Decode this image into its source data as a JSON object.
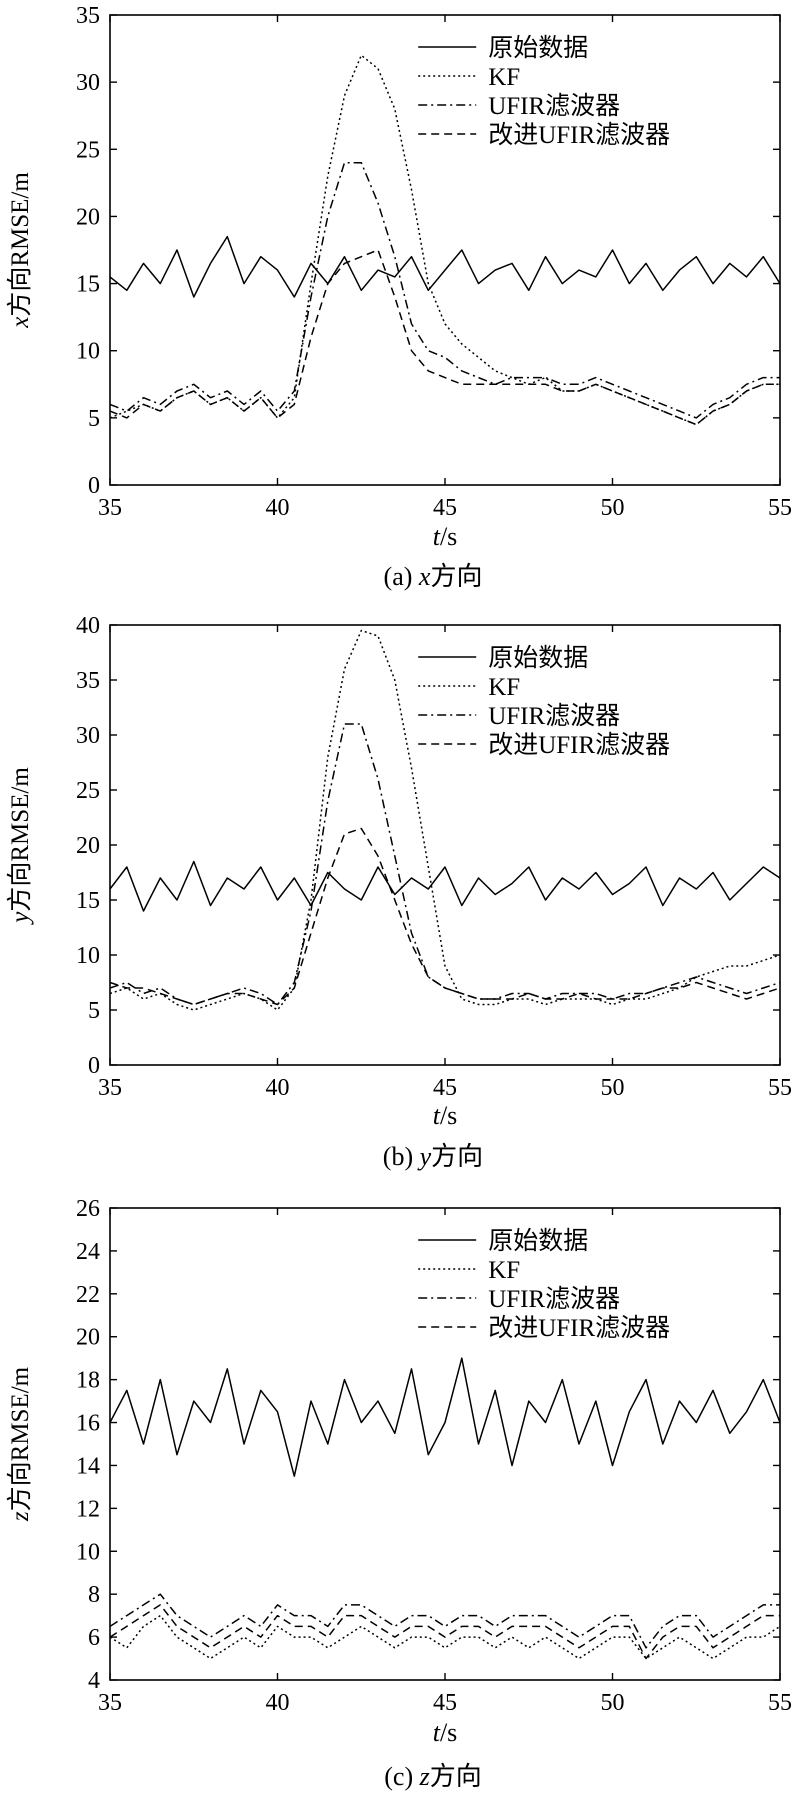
{
  "legend": {
    "raw": "原始数据",
    "kf": "KF",
    "ufir": "UFIR滤波器",
    "improved": "改进UFIR滤波器"
  },
  "colors": {
    "line": "#000000",
    "background": "#ffffff"
  },
  "chart_data": [
    {
      "type": "line",
      "xlabel_prefix": "t",
      "xlabel_suffix": "/s",
      "ylabel_prefix": "x",
      "ylabel_suffix": "方向RMSE/m",
      "caption_prefix": "(a) ",
      "caption_axis": "x",
      "caption_suffix": "方向",
      "xlim": [
        35,
        55
      ],
      "ylim": [
        0,
        35
      ],
      "xticks": [
        35,
        40,
        45,
        50,
        55
      ],
      "yticks": [
        0,
        5,
        10,
        15,
        20,
        25,
        30,
        35
      ],
      "legend_position": "top-right",
      "grid": false,
      "x": [
        35,
        35.5,
        36,
        36.5,
        37,
        37.5,
        38,
        38.5,
        39,
        39.5,
        40,
        40.5,
        41,
        41.5,
        42,
        42.5,
        43,
        43.5,
        44,
        44.5,
        45,
        45.5,
        46,
        46.5,
        47,
        47.5,
        48,
        48.5,
        49,
        49.5,
        50,
        50.5,
        51,
        51.5,
        52,
        52.5,
        53,
        53.5,
        54,
        54.5,
        55
      ],
      "series": [
        {
          "name": "原始数据",
          "dash": "solid",
          "values": [
            15.5,
            14.5,
            16.5,
            15,
            17.5,
            14,
            16.5,
            18.5,
            15,
            17,
            16,
            14,
            16.5,
            15,
            17,
            14.5,
            16,
            15.5,
            17,
            14.5,
            16,
            17.5,
            15,
            16,
            16.5,
            14.5,
            17,
            15,
            16,
            15.5,
            17.5,
            15,
            16.5,
            14.5,
            16,
            17,
            15,
            16.5,
            15.5,
            17,
            15
          ]
        },
        {
          "name": "KF",
          "dash": "dot",
          "values": [
            5,
            5.5,
            6,
            5.5,
            6.5,
            7,
            6,
            6.5,
            5.5,
            6.5,
            5,
            6.5,
            15,
            23,
            29,
            32,
            31,
            28,
            22,
            15,
            12,
            10.5,
            9.5,
            8.5,
            8,
            7.5,
            8,
            7,
            7,
            7.5,
            7,
            6.5,
            6,
            5.5,
            5,
            4.5,
            5.5,
            6,
            7,
            7.5,
            7.5
          ]
        },
        {
          "name": "UFIR滤波器",
          "dash": "dashdot",
          "values": [
            6,
            5.5,
            6.5,
            6,
            7,
            7.5,
            6.5,
            7,
            6,
            7,
            5.5,
            7,
            14,
            20,
            24,
            24,
            21,
            17,
            12,
            10,
            9.5,
            8.5,
            8,
            7.5,
            8,
            8,
            8,
            7.5,
            7.5,
            8,
            7.5,
            7,
            6.5,
            6,
            5.5,
            5,
            6,
            6.5,
            7.5,
            8,
            8
          ]
        },
        {
          "name": "改进UFIR滤波器",
          "dash": "dash",
          "values": [
            5.5,
            5,
            6,
            5.5,
            6.5,
            7,
            6,
            6.5,
            5.5,
            6.5,
            5,
            6,
            11,
            15,
            16.5,
            17,
            17.5,
            14,
            10,
            8.5,
            8,
            7.5,
            7.5,
            7.5,
            7.5,
            7.5,
            7.5,
            7,
            7,
            7.5,
            7,
            6.5,
            6,
            5.5,
            5,
            4.5,
            5.5,
            6,
            7,
            7.5,
            7.5
          ]
        }
      ]
    },
    {
      "type": "line",
      "xlabel_prefix": "t",
      "xlabel_suffix": "/s",
      "ylabel_prefix": "y",
      "ylabel_suffix": "方向RMSE/m",
      "caption_prefix": "(b) ",
      "caption_axis": "y",
      "caption_suffix": "方向",
      "xlim": [
        35,
        55
      ],
      "ylim": [
        0,
        40
      ],
      "xticks": [
        35,
        40,
        45,
        50,
        55
      ],
      "yticks": [
        0,
        5,
        10,
        15,
        20,
        25,
        30,
        35,
        40
      ],
      "legend_position": "top-right",
      "grid": false,
      "x": [
        35,
        35.5,
        36,
        36.5,
        37,
        37.5,
        38,
        38.5,
        39,
        39.5,
        40,
        40.5,
        41,
        41.5,
        42,
        42.5,
        43,
        43.5,
        44,
        44.5,
        45,
        45.5,
        46,
        46.5,
        47,
        47.5,
        48,
        48.5,
        49,
        49.5,
        50,
        50.5,
        51,
        51.5,
        52,
        52.5,
        53,
        53.5,
        54,
        54.5,
        55
      ],
      "series": [
        {
          "name": "原始数据",
          "dash": "solid",
          "values": [
            16,
            18,
            14,
            17,
            15,
            18.5,
            14.5,
            17,
            16,
            18,
            15,
            17,
            14.5,
            17.5,
            16,
            15,
            18,
            15.5,
            17,
            16,
            18,
            14.5,
            17,
            15.5,
            16.5,
            18,
            15,
            17,
            16,
            17.5,
            15.5,
            16.5,
            18,
            14.5,
            17,
            16,
            17.5,
            15,
            16.5,
            18,
            17
          ]
        },
        {
          "name": "KF",
          "dash": "dot",
          "values": [
            6.5,
            7,
            6,
            6.5,
            5.5,
            5,
            5.5,
            6,
            6.5,
            6,
            5,
            7,
            15,
            28,
            36,
            39.5,
            39,
            35,
            27,
            18,
            9,
            6,
            5.5,
            5.5,
            6,
            6,
            5.5,
            6,
            6,
            6,
            5.5,
            6,
            6,
            6.5,
            7,
            8,
            8.5,
            9,
            9,
            9.5,
            10
          ]
        },
        {
          "name": "UFIR滤波器",
          "dash": "dashdot",
          "values": [
            7,
            7.5,
            6.5,
            7,
            6,
            5.5,
            6,
            6.5,
            7,
            6.5,
            5.5,
            7.5,
            14,
            24,
            31,
            31,
            26,
            19,
            12,
            8,
            7,
            6.5,
            6,
            6,
            6.5,
            6.5,
            6,
            6.5,
            6.5,
            6.5,
            6,
            6.5,
            6.5,
            7,
            7.5,
            8,
            7.5,
            7,
            6.5,
            7,
            7.5
          ]
        },
        {
          "name": "改进UFIR滤波器",
          "dash": "dash",
          "values": [
            7.5,
            7,
            7,
            6.5,
            6,
            5.5,
            6,
            6.5,
            6.5,
            6,
            5.5,
            7,
            12,
            17,
            21,
            21.5,
            19,
            15,
            11,
            8,
            7,
            6.5,
            6,
            6,
            6,
            6.5,
            6,
            6,
            6.5,
            6,
            6,
            6,
            6.5,
            7,
            7,
            7.5,
            7,
            6.5,
            6,
            6.5,
            7
          ]
        }
      ]
    },
    {
      "type": "line",
      "xlabel_prefix": "t",
      "xlabel_suffix": "/s",
      "ylabel_prefix": "z",
      "ylabel_suffix": "方向RMSE/m",
      "caption_prefix": "(c) ",
      "caption_axis": "z",
      "caption_suffix": "方向",
      "xlim": [
        35,
        55
      ],
      "ylim": [
        4,
        26
      ],
      "xticks": [
        35,
        40,
        45,
        50,
        55
      ],
      "yticks": [
        4,
        6,
        8,
        10,
        12,
        14,
        16,
        18,
        20,
        22,
        24,
        26
      ],
      "legend_position": "top-right",
      "grid": false,
      "x": [
        35,
        35.5,
        36,
        36.5,
        37,
        37.5,
        38,
        38.5,
        39,
        39.5,
        40,
        40.5,
        41,
        41.5,
        42,
        42.5,
        43,
        43.5,
        44,
        44.5,
        45,
        45.5,
        46,
        46.5,
        47,
        47.5,
        48,
        48.5,
        49,
        49.5,
        50,
        50.5,
        51,
        51.5,
        52,
        52.5,
        53,
        53.5,
        54,
        54.5,
        55
      ],
      "series": [
        {
          "name": "原始数据",
          "dash": "solid",
          "values": [
            16,
            17.5,
            15,
            18,
            14.5,
            17,
            16,
            18.5,
            15,
            17.5,
            16.5,
            13.5,
            17,
            15,
            18,
            16,
            17,
            15.5,
            18.5,
            14.5,
            16,
            19,
            15,
            17.5,
            14,
            17,
            16,
            18,
            15,
            17,
            14,
            16.5,
            18,
            15,
            17,
            16,
            17.5,
            15.5,
            16.5,
            18,
            16
          ]
        },
        {
          "name": "KF",
          "dash": "dot",
          "values": [
            6,
            5.5,
            6.5,
            7,
            6,
            5.5,
            5,
            5.5,
            6,
            5.5,
            6.5,
            6,
            6,
            5.5,
            6,
            6.5,
            6,
            5.5,
            6,
            6,
            5.5,
            6,
            6,
            5.5,
            6,
            5.5,
            6,
            5.5,
            5,
            5.5,
            6,
            6,
            5,
            5.5,
            6,
            5.5,
            5,
            5.5,
            6,
            6,
            6.5
          ]
        },
        {
          "name": "UFIR滤波器",
          "dash": "dashdot",
          "values": [
            6.5,
            7,
            7.5,
            8,
            7,
            6.5,
            6,
            6.5,
            7,
            6.5,
            7.5,
            7,
            7,
            6.5,
            7.5,
            7.5,
            7,
            6.5,
            7,
            7,
            6.5,
            7,
            7,
            6.5,
            7,
            7,
            7,
            6.5,
            6,
            6.5,
            7,
            7,
            5.5,
            6.5,
            7,
            7,
            6,
            6.5,
            7,
            7.5,
            7.5
          ]
        },
        {
          "name": "改进UFIR滤波器",
          "dash": "dash",
          "values": [
            6,
            6.5,
            7,
            7.5,
            6.5,
            6,
            5.5,
            6,
            6.5,
            6,
            7,
            6.5,
            6.5,
            6,
            7,
            7,
            6.5,
            6,
            6.5,
            6.5,
            6,
            6.5,
            6.5,
            6,
            6.5,
            6.5,
            6.5,
            6,
            5.5,
            6,
            6.5,
            6.5,
            5,
            6,
            6.5,
            6.5,
            5.5,
            6,
            6.5,
            7,
            7
          ]
        }
      ]
    }
  ]
}
